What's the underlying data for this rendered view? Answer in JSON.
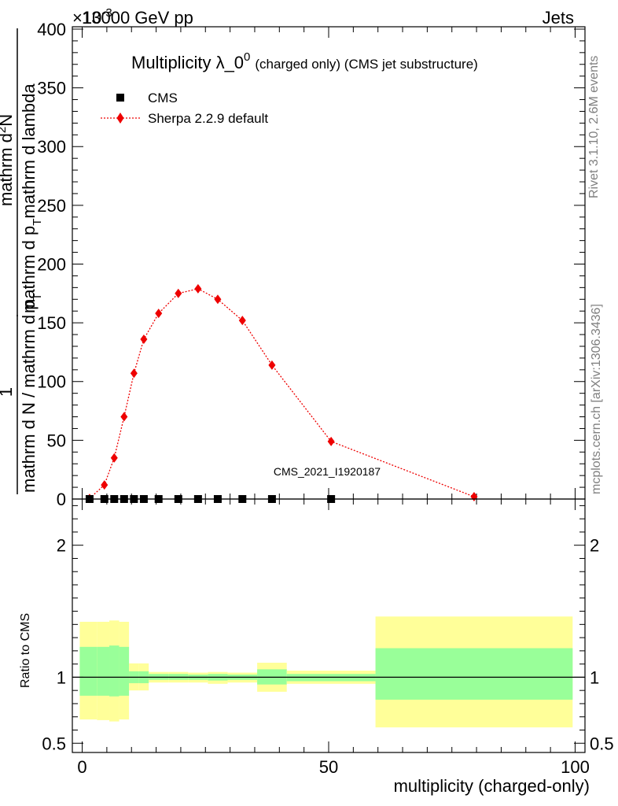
{
  "header": {
    "left": "13000 GeV pp",
    "right": "Jets",
    "exponent": "×10",
    "exponent_sup": "-3"
  },
  "side": {
    "rivet": "Rivet 3.1.10,  2.6M events",
    "mcplots": "mcplots.cern.ch [arXiv:1306.3436]"
  },
  "plot": {
    "title_main": "Multiplicity λ_0",
    "title_sup": "0",
    "title_small": "(charged only) (CMS jet substructure)",
    "watermark": "CMS_2021_I1920187",
    "ylabel_num": "1",
    "ylabel_den": "mathrm d N / mathrm d p",
    "ylabel_den_sub": "T",
    "ylabel_num2": "mathrm d",
    "ylabel_num2_sup": "2",
    "ylabel_num3": "N",
    "ylabel_den2": "mathrm d p",
    "ylabel_den2_sub": "T",
    "ylabel_den3": "mathrm d lambda",
    "ratio_ylabel": "Ratio to CMS",
    "xlabel": "multiplicity (charged-only)"
  },
  "legend": {
    "cms": "CMS",
    "sherpa": "Sherpa 2.2.9 default"
  },
  "chart_data": {
    "type": "scatter",
    "x_range": [
      -2,
      102
    ],
    "y_range": [
      0,
      402
    ],
    "x_ticks": [
      0,
      50,
      100
    ],
    "y_ticks": [
      0,
      50,
      100,
      150,
      200,
      250,
      300,
      350,
      400
    ],
    "colors": {
      "mc": "#ee0000",
      "band_inner": "#99ff99",
      "band_outer": "#ffff99"
    },
    "cms_points": [
      {
        "x": 1.5,
        "y": 0
      },
      {
        "x": 4.5,
        "y": 0
      },
      {
        "x": 6.5,
        "y": 0
      },
      {
        "x": 8.5,
        "y": 0
      },
      {
        "x": 10.5,
        "y": 0
      },
      {
        "x": 12.5,
        "y": 0
      },
      {
        "x": 15.5,
        "y": 0
      },
      {
        "x": 19.5,
        "y": 0
      },
      {
        "x": 23.5,
        "y": 0
      },
      {
        "x": 27.5,
        "y": 0
      },
      {
        "x": 32.5,
        "y": 0
      },
      {
        "x": 38.5,
        "y": 0
      },
      {
        "x": 50.5,
        "y": 0
      }
    ],
    "series": [
      {
        "name": "Sherpa 2.2.9 default",
        "x": [
          1.5,
          4.5,
          6.5,
          8.5,
          10.5,
          12.5,
          15.5,
          19.5,
          23.5,
          27.5,
          32.5,
          38.5,
          50.5,
          79.5
        ],
        "y": [
          0.5,
          12,
          35,
          70,
          107,
          136,
          158,
          175,
          179,
          170,
          152,
          114,
          49,
          2
        ]
      }
    ],
    "ratio": {
      "y_range": [
        0.43,
        2.35
      ],
      "y_ticks": [
        0.5,
        1,
        2
      ],
      "bins": [
        {
          "lo": -0.5,
          "hi": 3,
          "in_lo": 0.86,
          "in_hi": 1.23,
          "out_lo": 0.68,
          "out_hi": 1.42
        },
        {
          "lo": 3,
          "hi": 5.5,
          "in_lo": 0.86,
          "in_hi": 1.23,
          "out_lo": 0.675,
          "out_hi": 1.42
        },
        {
          "lo": 5.5,
          "hi": 7.5,
          "in_lo": 0.855,
          "in_hi": 1.24,
          "out_lo": 0.665,
          "out_hi": 1.43
        },
        {
          "lo": 7.5,
          "hi": 9.5,
          "in_lo": 0.86,
          "in_hi": 1.23,
          "out_lo": 0.68,
          "out_hi": 1.42
        },
        {
          "lo": 9.5,
          "hi": 11.5,
          "in_lo": 0.955,
          "in_hi": 1.045,
          "out_lo": 0.9,
          "out_hi": 1.105
        },
        {
          "lo": 11.5,
          "hi": 13.5,
          "in_lo": 0.955,
          "in_hi": 1.045,
          "out_lo": 0.9,
          "out_hi": 1.105
        },
        {
          "lo": 13.5,
          "hi": 17.5,
          "in_lo": 0.98,
          "in_hi": 1.025,
          "out_lo": 0.96,
          "out_hi": 1.04
        },
        {
          "lo": 17.5,
          "hi": 21.5,
          "in_lo": 0.98,
          "in_hi": 1.025,
          "out_lo": 0.96,
          "out_hi": 1.04
        },
        {
          "lo": 21.5,
          "hi": 25.5,
          "in_lo": 0.98,
          "in_hi": 1.02,
          "out_lo": 0.96,
          "out_hi": 1.035
        },
        {
          "lo": 25.5,
          "hi": 29.5,
          "in_lo": 0.975,
          "in_hi": 1.025,
          "out_lo": 0.95,
          "out_hi": 1.04
        },
        {
          "lo": 29.5,
          "hi": 35.5,
          "in_lo": 0.98,
          "in_hi": 1.02,
          "out_lo": 0.96,
          "out_hi": 1.035
        },
        {
          "lo": 35.5,
          "hi": 41.5,
          "in_lo": 0.945,
          "in_hi": 1.06,
          "out_lo": 0.89,
          "out_hi": 1.11
        },
        {
          "lo": 41.5,
          "hi": 59.5,
          "in_lo": 0.97,
          "in_hi": 1.025,
          "out_lo": 0.95,
          "out_hi": 1.05
        },
        {
          "lo": 59.5,
          "hi": 99.5,
          "in_lo": 0.83,
          "in_hi": 1.22,
          "out_lo": 0.62,
          "out_hi": 1.46
        }
      ]
    }
  }
}
